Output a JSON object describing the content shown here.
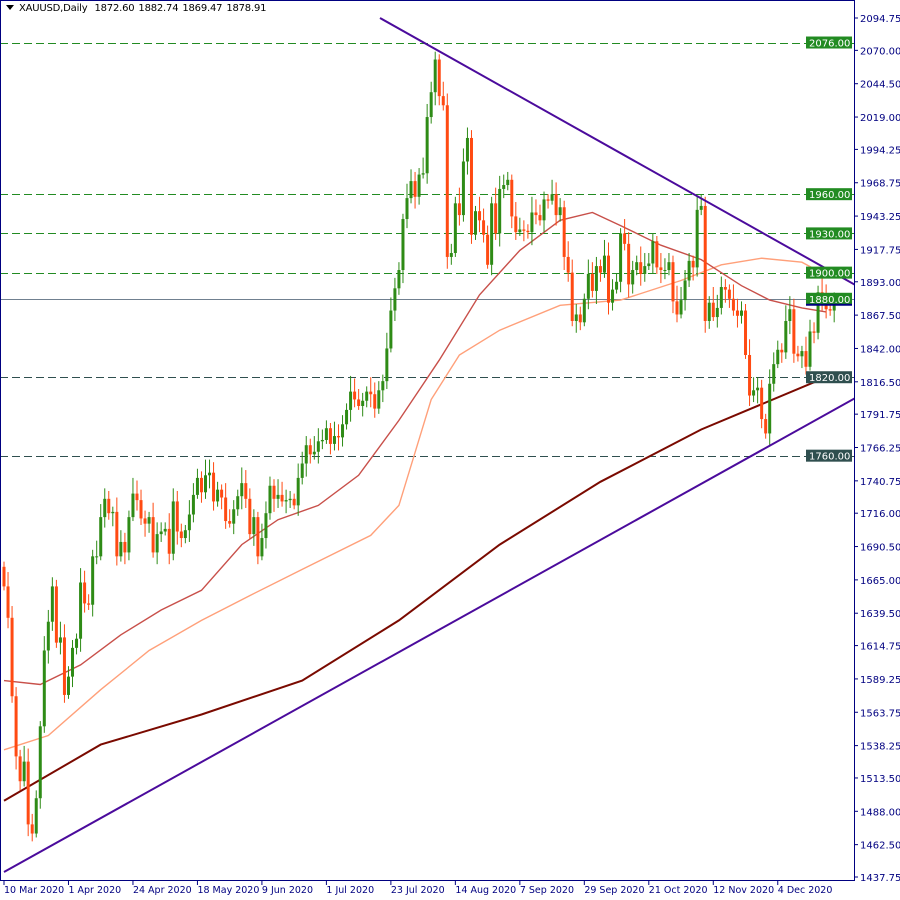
{
  "header": {
    "symbol": "XAUUSD,Daily",
    "open": "1872.60",
    "high": "1882.74",
    "low": "1869.47",
    "close": "1878.91"
  },
  "colors": {
    "bull": "#2e8b16",
    "bear": "#ff4a12",
    "ma_fast": "#c8504a",
    "ma_mid": "#ffa07a",
    "ma_slow": "#7a0a00",
    "trendline": "#4b0b9c",
    "level_green": "#228b22",
    "level_dark": "#2f4f4f",
    "axis": "#000080"
  },
  "chart_data": {
    "type": "candlestick",
    "title": "",
    "ylim": [
      1437.75,
      2094.75
    ],
    "y_ticks": [
      "2094.75",
      "2070.00",
      "2044.50",
      "2019.00",
      "1994.25",
      "1968.75",
      "1943.25",
      "1917.75",
      "1893.00",
      "1867.50",
      "1842.00",
      "1816.50",
      "1791.75",
      "1766.25",
      "1740.75",
      "1716.00",
      "1690.50",
      "1665.00",
      "1639.50",
      "1614.75",
      "1589.25",
      "1563.75",
      "1538.25",
      "1513.50",
      "1488.00",
      "1462.50",
      "1437.75"
    ],
    "x_ticks": [
      {
        "bar": 0,
        "label": "10 Mar 2020"
      },
      {
        "bar": 16,
        "label": "1 Apr 2020"
      },
      {
        "bar": 32,
        "label": "24 Apr 2020"
      },
      {
        "bar": 48,
        "label": "18 May 2020"
      },
      {
        "bar": 64,
        "label": "9 Jun 2020"
      },
      {
        "bar": 80,
        "label": "1 Jul 2020"
      },
      {
        "bar": 96,
        "label": "23 Jul 2020"
      },
      {
        "bar": 112,
        "label": "14 Aug 2020"
      },
      {
        "bar": 128,
        "label": "7 Sep 2020"
      },
      {
        "bar": 144,
        "label": "29 Sep 2020"
      },
      {
        "bar": 160,
        "label": "21 Oct 2020"
      },
      {
        "bar": 176,
        "label": "12 Nov 2020"
      },
      {
        "bar": 192,
        "label": "4 Dec 2020"
      }
    ],
    "first_open": 1675,
    "closes": [
      1660,
      1636,
      1576,
      1530,
      1511,
      1526,
      1478,
      1471,
      1498,
      1553,
      1611,
      1633,
      1660,
      1617,
      1621,
      1577,
      1591,
      1613,
      1620,
      1663,
      1647,
      1646,
      1683,
      1683,
      1713,
      1727,
      1716,
      1717,
      1683,
      1694,
      1686,
      1713,
      1731,
      1726,
      1712,
      1708,
      1713,
      1686,
      1700,
      1702,
      1704,
      1685,
      1725,
      1702,
      1697,
      1703,
      1715,
      1730,
      1743,
      1732,
      1745,
      1747,
      1725,
      1734,
      1728,
      1710,
      1708,
      1719,
      1729,
      1739,
      1727,
      1700,
      1713,
      1683,
      1697,
      1716,
      1737,
      1727,
      1730,
      1725,
      1726,
      1727,
      1722,
      1743,
      1754,
      1768,
      1761,
      1763,
      1771,
      1772,
      1781,
      1769,
      1775,
      1774,
      1784,
      1795,
      1809,
      1803,
      1798,
      1802,
      1809,
      1807,
      1796,
      1810,
      1817,
      1842,
      1871,
      1888,
      1902,
      1941,
      1957,
      1970,
      1958,
      1975,
      1976,
      2019,
      2038,
      2063,
      2035,
      2028,
      1912,
      1915,
      1953,
      1944,
      1985,
      2003,
      1929,
      1947,
      1940,
      1929,
      1906,
      1953,
      1930,
      1964,
      1967,
      1971,
      1943,
      1931,
      1933,
      1932,
      1931,
      1946,
      1944,
      1940,
      1956,
      1955,
      1960,
      1944,
      1950,
      1912,
      1900,
      1863,
      1868,
      1862,
      1880,
      1899,
      1886,
      1905,
      1900,
      1913,
      1877,
      1887,
      1893,
      1930,
      1922,
      1891,
      1902,
      1908,
      1899,
      1905,
      1907,
      1924,
      1904,
      1902,
      1902,
      1908,
      1878,
      1868,
      1879,
      1894,
      1909,
      1904,
      1948,
      1951,
      1863,
      1877,
      1866,
      1873,
      1889,
      1887,
      1880,
      1871,
      1867,
      1871,
      1837,
      1806,
      1810,
      1812,
      1788,
      1777,
      1815,
      1830,
      1841,
      1839,
      1863,
      1872,
      1838,
      1836,
      1840,
      1828,
      1855,
      1854,
      1885,
      1881,
      1872,
      1871,
      1878.91
    ],
    "moving_averages": [
      {
        "role": "ma_slow",
        "points": [
          [
            0,
            1496
          ],
          [
            24,
            1539
          ],
          [
            49,
            1562
          ],
          [
            74,
            1588
          ],
          [
            98,
            1634
          ],
          [
            123,
            1692
          ],
          [
            148,
            1740
          ],
          [
            173,
            1780
          ],
          [
            204,
            1820
          ]
        ]
      },
      {
        "role": "ma_mid",
        "points": [
          [
            0,
            1535
          ],
          [
            11,
            1546
          ],
          [
            24,
            1581
          ],
          [
            36,
            1611
          ],
          [
            49,
            1634
          ],
          [
            61,
            1653
          ],
          [
            74,
            1673
          ],
          [
            91,
            1699
          ],
          [
            98,
            1722
          ],
          [
            106,
            1803
          ],
          [
            113,
            1837
          ],
          [
            123,
            1856
          ],
          [
            138,
            1875
          ],
          [
            153,
            1879
          ],
          [
            168,
            1894
          ],
          [
            178,
            1906
          ],
          [
            188,
            1911
          ],
          [
            198,
            1908
          ],
          [
            204,
            1898
          ]
        ]
      },
      {
        "role": "ma_fast",
        "points": [
          [
            0,
            1588
          ],
          [
            9,
            1585
          ],
          [
            19,
            1600
          ],
          [
            29,
            1623
          ],
          [
            39,
            1642
          ],
          [
            49,
            1657
          ],
          [
            59,
            1692
          ],
          [
            68,
            1711
          ],
          [
            78,
            1722
          ],
          [
            88,
            1745
          ],
          [
            98,
            1787
          ],
          [
            108,
            1833
          ],
          [
            118,
            1883
          ],
          [
            128,
            1917
          ],
          [
            138,
            1940
          ],
          [
            146,
            1946
          ],
          [
            153,
            1936
          ],
          [
            163,
            1921
          ],
          [
            173,
            1910
          ],
          [
            183,
            1890
          ],
          [
            190,
            1879
          ],
          [
            198,
            1873
          ],
          [
            204,
            1870
          ]
        ]
      }
    ],
    "trendlines": [
      {
        "name": "resistance",
        "from": [
          93.3,
          2094.75
        ],
        "to": [
          211.2,
          1890.6
        ]
      },
      {
        "name": "support",
        "from": [
          0,
          1441.6
        ],
        "to": [
          211.2,
          1804
        ]
      }
    ],
    "levels": [
      {
        "price": 2076,
        "label": "2076.00",
        "style": "green"
      },
      {
        "price": 1960,
        "label": "1960.00",
        "style": "green"
      },
      {
        "price": 1930,
        "label": "1930.00",
        "style": "green"
      },
      {
        "price": 1900,
        "label": "1900.00",
        "style": "green"
      },
      {
        "price": 1880,
        "label": "1880.00",
        "style": "price"
      },
      {
        "price": 1820,
        "label": "1820.00",
        "style": "dark"
      },
      {
        "price": 1760,
        "label": "1760.00",
        "style": "dark"
      }
    ]
  }
}
